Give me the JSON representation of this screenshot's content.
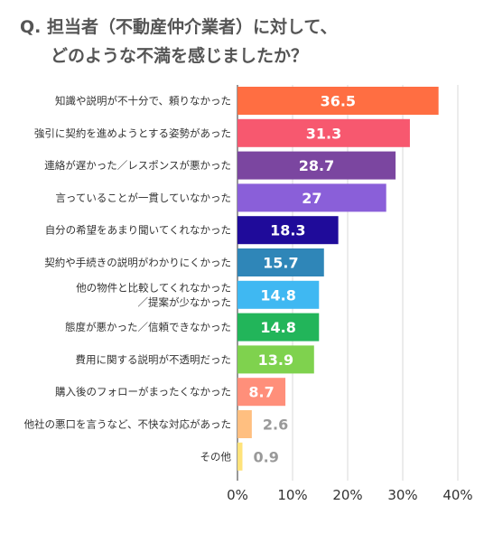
{
  "title_line1": "Q. 担当者（不動産仲介業者）に対して、",
  "title_line2": "どのような不満を感じましたか？",
  "chart_data": {
    "type": "bar",
    "orientation": "horizontal",
    "title": "Q. 担当者（不動産仲介業者）に対して、どのような不満を感じましたか？",
    "xlabel": "",
    "ylabel": "",
    "xlim": [
      0,
      40
    ],
    "x_ticks": [
      "0%",
      "10%",
      "20%",
      "30%",
      "40%"
    ],
    "grid": true,
    "legend": "none",
    "categories": [
      [
        "知識や説明が不十分で、頼りなかった"
      ],
      [
        "強引に契約を進めようとする姿勢があった"
      ],
      [
        "連絡が遅かった／レスポンスが悪かった"
      ],
      [
        "言っていることが一貫していなかった"
      ],
      [
        "自分の希望をあまり聞いてくれなかった"
      ],
      [
        "契約や手続きの説明がわかりにくかった"
      ],
      [
        "他の物件と比較してくれなかった",
        "／提案が少なかった"
      ],
      [
        "態度が悪かった／信頼できなかった"
      ],
      [
        "費用に関する説明が不透明だった"
      ],
      [
        "購入後のフォローがまったくなかった"
      ],
      [
        "他社の悪口を言うなど、不快な対応があった"
      ],
      [
        "その他"
      ]
    ],
    "values": [
      36.5,
      31.3,
      28.7,
      27,
      18.3,
      15.7,
      14.8,
      14.8,
      13.9,
      8.7,
      2.6,
      0.9
    ],
    "value_labels": [
      "36.5",
      "31.3",
      "28.7",
      "27",
      "18.3",
      "15.7",
      "14.8",
      "14.8",
      "13.9",
      "8.7",
      "2.6",
      "0.9"
    ],
    "colors": [
      "#ff6e42",
      "#f7586f",
      "#7b46a0",
      "#8a5fd9",
      "#1f0b9a",
      "#2f86b8",
      "#3fb8f2",
      "#22b55a",
      "#7fd24e",
      "#ff8f7a",
      "#ffbf80",
      "#ffe37a"
    ]
  }
}
